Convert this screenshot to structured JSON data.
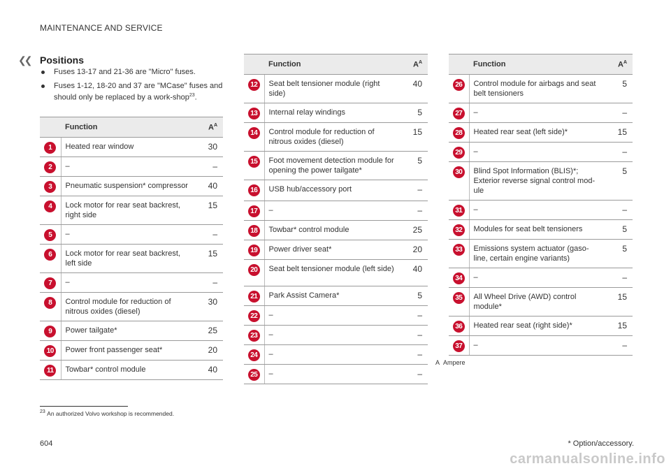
{
  "header": {
    "title": "MAINTENANCE AND SERVICE",
    "back_icon": "double-chevron-left-icon"
  },
  "section": {
    "title": "Positions",
    "bullets": [
      {
        "text": "Fuses 13-17 and 21-36 are \"Micro\" fuses."
      },
      {
        "text": "Fuses 1-12, 18-20 and 37 are \"MCase\" fuses and should only be replaced by a work-shop",
        "footnote": "23",
        "after": "."
      }
    ]
  },
  "table_header": {
    "function": "Function",
    "amp": "A",
    "amp_sup": "A"
  },
  "tables": [
    {
      "rows": [
        {
          "num": "1",
          "func": "Heated rear window",
          "amp": "30"
        },
        {
          "num": "2",
          "func": "–",
          "amp": "–"
        },
        {
          "num": "3",
          "func": "Pneumatic suspension* compressor",
          "amp": "40"
        },
        {
          "num": "4",
          "func": "Lock motor for rear seat backrest, right side",
          "amp": "15"
        },
        {
          "num": "5",
          "func": "–",
          "amp": "–"
        },
        {
          "num": "6",
          "func": "Lock motor for rear seat backrest, left side",
          "amp": "15"
        },
        {
          "num": "7",
          "func": "–",
          "amp": "–"
        },
        {
          "num": "8",
          "func": "Control module for reduction of nitrous oxides (diesel)",
          "amp": "30"
        },
        {
          "num": "9",
          "func": "Power tailgate*",
          "amp": "25"
        },
        {
          "num": "10",
          "func": "Power front passenger seat*",
          "amp": "20"
        },
        {
          "num": "11",
          "func": "Towbar* control module",
          "amp": "40"
        }
      ]
    },
    {
      "rows": [
        {
          "num": "12",
          "func": "Seat belt tensioner module (right side)",
          "amp": "40"
        },
        {
          "num": "13",
          "func": "Internal relay windings",
          "amp": "5"
        },
        {
          "num": "14",
          "func": "Control module for reduction of nitrous oxides (diesel)",
          "amp": "15"
        },
        {
          "num": "15",
          "func": "Foot movement detection module for opening the power tailgate*",
          "amp": "5"
        },
        {
          "num": "16",
          "func": "USB hub/accessory port",
          "amp": "–"
        },
        {
          "num": "17",
          "func": "–",
          "amp": "–"
        },
        {
          "num": "18",
          "func": "Towbar* control module",
          "amp": "25"
        },
        {
          "num": "19",
          "func": "Power driver seat*",
          "amp": "20"
        },
        {
          "num": "20",
          "func": "Seat belt tensioner module (left side)",
          "amp": "40"
        },
        {
          "num": "21",
          "func": "Park Assist Camera*",
          "amp": "5"
        },
        {
          "num": "22",
          "func": "–",
          "amp": "–"
        },
        {
          "num": "23",
          "func": "–",
          "amp": "–"
        },
        {
          "num": "24",
          "func": "–",
          "amp": "–"
        },
        {
          "num": "25",
          "func": "–",
          "amp": "–"
        }
      ]
    },
    {
      "rows": [
        {
          "num": "26",
          "func": "Control module for airbags and seat belt tensioners",
          "amp": "5"
        },
        {
          "num": "27",
          "func": "–",
          "amp": "–"
        },
        {
          "num": "28",
          "func": "Heated rear seat (left side)*",
          "amp": "15"
        },
        {
          "num": "29",
          "func": "–",
          "amp": "–"
        },
        {
          "num": "30",
          "func": "Blind Spot Information (BLIS)*; Exterior reverse signal control mod-ule",
          "amp": "5"
        },
        {
          "num": "31",
          "func": "–",
          "amp": "–"
        },
        {
          "num": "32",
          "func": "Modules for seat belt tensioners",
          "amp": "5"
        },
        {
          "num": "33",
          "func": "Emissions system actuator (gaso-line, certain engine variants)",
          "amp": "5"
        },
        {
          "num": "34",
          "func": "–",
          "amp": "–"
        },
        {
          "num": "35",
          "func": "All Wheel Drive (AWD) control module*",
          "amp": "15"
        },
        {
          "num": "36",
          "func": "Heated rear seat (right side)*",
          "amp": "15"
        },
        {
          "num": "37",
          "func": "–",
          "amp": "–"
        }
      ]
    }
  ],
  "amp_note": {
    "mark": "A",
    "text": "Ampere"
  },
  "footnote": {
    "number": "23",
    "text": "An authorized Volvo workshop is recommended."
  },
  "footer": {
    "page": "604",
    "option_note": "* Option/accessory."
  },
  "watermark": "carmanualsonline.info",
  "colors": {
    "badge": "#c8102e",
    "header_bg": "#ebebeb",
    "rule": "#9a9a9a"
  }
}
